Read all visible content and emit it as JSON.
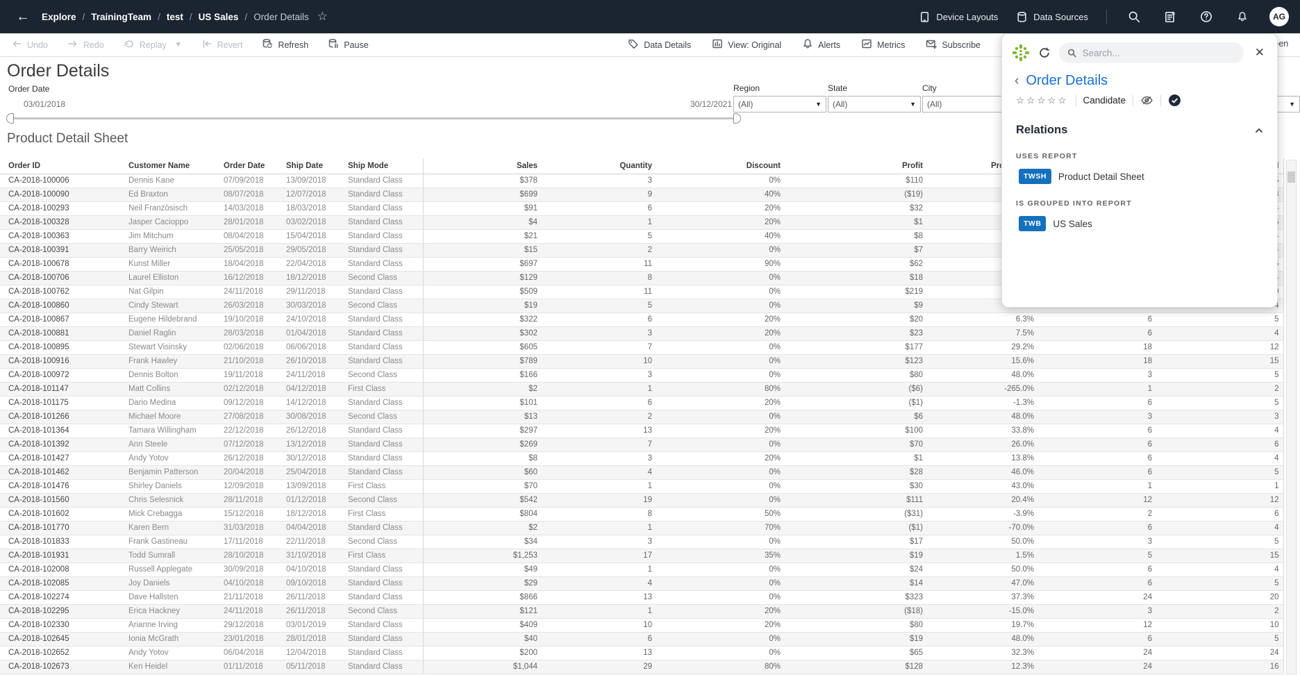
{
  "topbar": {
    "breadcrumb": [
      {
        "label": "Explore",
        "current": false
      },
      {
        "label": "TrainingTeam",
        "current": false
      },
      {
        "label": "test",
        "current": false
      },
      {
        "label": "US Sales",
        "current": false
      },
      {
        "label": "Order Details",
        "current": true
      }
    ],
    "actions": [
      {
        "icon": "device-layouts-icon",
        "label": "Device Layouts"
      },
      {
        "icon": "database-icon",
        "label": "Data Sources"
      }
    ],
    "icon_buttons": [
      "search-icon",
      "notes-star-icon",
      "help-icon",
      "bell-icon"
    ],
    "avatar_initials": "AG"
  },
  "toolbar": {
    "left": [
      {
        "icon": "undo-icon",
        "label": "Undo",
        "disabled": true
      },
      {
        "icon": "redo-icon",
        "label": "Redo",
        "disabled": true
      },
      {
        "icon": "replay-icon",
        "label": "Replay",
        "disabled": true,
        "caret": true
      },
      {
        "icon": "revert-icon",
        "label": "Revert",
        "disabled": true
      },
      {
        "icon": "db-refresh-icon",
        "label": "Refresh",
        "disabled": false
      },
      {
        "icon": "db-pause-icon",
        "label": "Pause",
        "disabled": false
      }
    ],
    "right": [
      {
        "icon": "tag-icon",
        "label": "Data Details"
      },
      {
        "icon": "view-chart-icon",
        "label": "View: Original"
      },
      {
        "icon": "bell-icon",
        "label": "Alerts"
      },
      {
        "icon": "metrics-icon",
        "label": "Metrics"
      },
      {
        "icon": "envelope-plus-icon",
        "label": "Subscribe"
      }
    ],
    "full_screen_label": "Full Screen"
  },
  "page": {
    "title": "Order Details"
  },
  "filters": {
    "order_date": {
      "label": "Order Date",
      "start": "03/01/2018",
      "end": "30/12/2021"
    },
    "dropdowns": [
      {
        "label": "Region",
        "value": "(All)"
      },
      {
        "label": "State",
        "value": "(All)"
      },
      {
        "label": "City",
        "value": "(All)"
      }
    ],
    "extra_dropdown_value": ""
  },
  "sheet": {
    "title": "Product Detail Sheet"
  },
  "table": {
    "headers": [
      "Order ID",
      "Customer Name",
      "Order Date",
      "Ship Date",
      "Ship Mode",
      "Sales",
      "Quantity",
      "Discount",
      "Profit",
      "Profit Ratio",
      "",
      "al"
    ],
    "rows": [
      [
        "CA-2018-100006",
        "Dennis Kane",
        "07/09/2018",
        "13/09/2018",
        "Standard Class",
        "$378",
        "3",
        "0%",
        "$110",
        "",
        "",
        "5"
      ],
      [
        "CA-2018-100090",
        "Ed Braxton",
        "08/07/2018",
        "12/07/2018",
        "Standard Class",
        "$699",
        "9",
        "40%",
        "($19)",
        "",
        "",
        "3"
      ],
      [
        "CA-2018-100293",
        "Neil Französisch",
        "14/03/2018",
        "18/03/2018",
        "Standard Class",
        "$91",
        "6",
        "20%",
        "$32",
        "",
        "",
        "4"
      ],
      [
        "CA-2018-100328",
        "Jasper Cacioppo",
        "28/01/2018",
        "03/02/2018",
        "Standard Class",
        "$4",
        "1",
        "20%",
        "$1",
        "",
        "",
        "5"
      ],
      [
        "CA-2018-100363",
        "Jim Mitchum",
        "08/04/2018",
        "15/04/2018",
        "Standard Class",
        "$21",
        "5",
        "40%",
        "$8",
        "",
        "",
        "4"
      ],
      [
        "CA-2018-100391",
        "Barry Weirich",
        "25/05/2018",
        "29/05/2018",
        "Standard Class",
        "$15",
        "2",
        "0%",
        "$7",
        "",
        "",
        "4"
      ],
      [
        "CA-2018-100678",
        "Kunst Miller",
        "18/04/2018",
        "22/04/2018",
        "Standard Class",
        "$697",
        "11",
        "90%",
        "$62",
        "",
        "",
        "5"
      ],
      [
        "CA-2018-100706",
        "Laurel Elliston",
        "16/12/2018",
        "18/12/2018",
        "Second Class",
        "$129",
        "8",
        "0%",
        "$18",
        "",
        "",
        "4"
      ],
      [
        "CA-2018-100762",
        "Nat Gilpin",
        "24/11/2018",
        "29/11/2018",
        "Standard Class",
        "$509",
        "11",
        "0%",
        "$219",
        "",
        "",
        "0"
      ],
      [
        "CA-2018-100860",
        "Cindy Stewart",
        "26/03/2018",
        "30/03/2018",
        "Second Class",
        "$19",
        "5",
        "0%",
        "$9",
        "",
        "",
        "4"
      ],
      [
        "CA-2018-100867",
        "Eugene Hildebrand",
        "19/10/2018",
        "24/10/2018",
        "Standard Class",
        "$322",
        "6",
        "20%",
        "$20",
        "6.3%",
        "6",
        "5"
      ],
      [
        "CA-2018-100881",
        "Daniel Raglin",
        "28/03/2018",
        "01/04/2018",
        "Standard Class",
        "$302",
        "3",
        "20%",
        "$23",
        "7.5%",
        "6",
        "4"
      ],
      [
        "CA-2018-100895",
        "Stewart Visinsky",
        "02/06/2018",
        "06/06/2018",
        "Standard Class",
        "$605",
        "7",
        "0%",
        "$177",
        "29.2%",
        "18",
        "12"
      ],
      [
        "CA-2018-100916",
        "Frank Hawley",
        "21/10/2018",
        "26/10/2018",
        "Standard Class",
        "$789",
        "10",
        "0%",
        "$123",
        "15.6%",
        "18",
        "15"
      ],
      [
        "CA-2018-100972",
        "Dennis Bolton",
        "19/11/2018",
        "24/11/2018",
        "Second Class",
        "$166",
        "3",
        "0%",
        "$80",
        "48.0%",
        "3",
        "5"
      ],
      [
        "CA-2018-101147",
        "Matt Collins",
        "02/12/2018",
        "04/12/2018",
        "First Class",
        "$2",
        "1",
        "80%",
        "($6)",
        "-265.0%",
        "1",
        "2"
      ],
      [
        "CA-2018-101175",
        "Dario Medina",
        "09/12/2018",
        "14/12/2018",
        "Standard Class",
        "$101",
        "6",
        "20%",
        "($1)",
        "-1.3%",
        "6",
        "5"
      ],
      [
        "CA-2018-101266",
        "Michael Moore",
        "27/08/2018",
        "30/08/2018",
        "Second Class",
        "$13",
        "2",
        "0%",
        "$6",
        "48.0%",
        "3",
        "3"
      ],
      [
        "CA-2018-101364",
        "Tamara Willingham",
        "22/12/2018",
        "26/12/2018",
        "Standard Class",
        "$297",
        "13",
        "20%",
        "$100",
        "33.8%",
        "6",
        "4"
      ],
      [
        "CA-2018-101392",
        "Ann Steele",
        "07/12/2018",
        "13/12/2018",
        "Standard Class",
        "$269",
        "7",
        "0%",
        "$70",
        "26.0%",
        "6",
        "6"
      ],
      [
        "CA-2018-101427",
        "Andy Yotov",
        "26/12/2018",
        "30/12/2018",
        "Standard Class",
        "$8",
        "3",
        "20%",
        "$1",
        "13.8%",
        "6",
        "4"
      ],
      [
        "CA-2018-101462",
        "Benjamin Patterson",
        "20/04/2018",
        "25/04/2018",
        "Standard Class",
        "$60",
        "4",
        "0%",
        "$28",
        "46.0%",
        "6",
        "5"
      ],
      [
        "CA-2018-101476",
        "Shirley Daniels",
        "12/09/2018",
        "13/09/2018",
        "First Class",
        "$70",
        "1",
        "0%",
        "$30",
        "43.0%",
        "1",
        "1"
      ],
      [
        "CA-2018-101560",
        "Chris Selesnick",
        "28/11/2018",
        "01/12/2018",
        "Second Class",
        "$542",
        "19",
        "0%",
        "$111",
        "20.4%",
        "12",
        "12"
      ],
      [
        "CA-2018-101602",
        "Mick Crebagga",
        "15/12/2018",
        "18/12/2018",
        "First Class",
        "$804",
        "8",
        "50%",
        "($31)",
        "-3.9%",
        "2",
        "6"
      ],
      [
        "CA-2018-101770",
        "Karen Bern",
        "31/03/2018",
        "04/04/2018",
        "Standard Class",
        "$2",
        "1",
        "70%",
        "($1)",
        "-70.0%",
        "6",
        "4"
      ],
      [
        "CA-2018-101833",
        "Frank Gastineau",
        "17/11/2018",
        "22/11/2018",
        "Second Class",
        "$34",
        "3",
        "0%",
        "$17",
        "50.0%",
        "3",
        "5"
      ],
      [
        "CA-2018-101931",
        "Todd Sumrall",
        "28/10/2018",
        "31/10/2018",
        "First Class",
        "$1,253",
        "17",
        "35%",
        "$19",
        "1.5%",
        "5",
        "15"
      ],
      [
        "CA-2018-102008",
        "Russell Applegate",
        "30/09/2018",
        "04/10/2018",
        "Standard Class",
        "$49",
        "1",
        "0%",
        "$24",
        "50.0%",
        "6",
        "4"
      ],
      [
        "CA-2018-102085",
        "Joy Daniels",
        "04/10/2018",
        "09/10/2018",
        "Standard Class",
        "$29",
        "4",
        "0%",
        "$14",
        "47.0%",
        "6",
        "5"
      ],
      [
        "CA-2018-102274",
        "Dave Hallsten",
        "21/11/2018",
        "26/11/2018",
        "Standard Class",
        "$866",
        "13",
        "0%",
        "$323",
        "37.3%",
        "24",
        "20"
      ],
      [
        "CA-2018-102295",
        "Erica Hackney",
        "24/11/2018",
        "26/11/2018",
        "Second Class",
        "$121",
        "1",
        "20%",
        "($18)",
        "-15.0%",
        "3",
        "2"
      ],
      [
        "CA-2018-102330",
        "Arianne Irving",
        "29/12/2018",
        "03/01/2019",
        "Standard Class",
        "$409",
        "10",
        "20%",
        "$80",
        "19.7%",
        "12",
        "10"
      ],
      [
        "CA-2018-102645",
        "Ionia McGrath",
        "23/01/2018",
        "28/01/2018",
        "Standard Class",
        "$40",
        "6",
        "0%",
        "$19",
        "48.0%",
        "6",
        "5"
      ],
      [
        "CA-2018-102652",
        "Andy Yotov",
        "06/04/2018",
        "12/04/2018",
        "Standard Class",
        "$200",
        "13",
        "0%",
        "$65",
        "32.3%",
        "24",
        "24"
      ],
      [
        "CA-2018-102673",
        "Ken Heidel",
        "01/11/2018",
        "05/11/2018",
        "Standard Class",
        "$1,044",
        "29",
        "80%",
        "$128",
        "12.3%",
        "24",
        "16"
      ]
    ]
  },
  "panel": {
    "logo_icon": "green-grid-logo",
    "search_placeholder": "Search...",
    "title": "Order Details",
    "stars": "☆☆☆☆☆",
    "status": "Candidate",
    "relations": {
      "heading": "Relations",
      "sections": [
        {
          "label": "USES REPORT",
          "badge": "TWSH",
          "item": "Product Detail Sheet"
        },
        {
          "label": "IS GROUPED INTO REPORT",
          "badge": "TWB",
          "item": "US Sales"
        }
      ]
    }
  },
  "colors": {
    "topbar_bg": "#1b2531",
    "panel_link_blue": "#1a6fd9",
    "badge_blue": "#1471bd",
    "logo_green": "#7ab82d",
    "row_band": "#f5f5f5"
  }
}
